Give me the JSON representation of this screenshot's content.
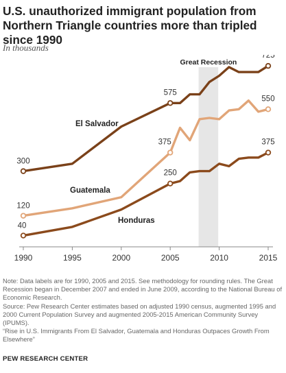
{
  "header": {
    "title": "U.S. unauthorized immigrant population from Northern Triangle countries more than tripled since 1990",
    "subtitle": "In thousands"
  },
  "colors": {
    "el_salvador": "#7a4119",
    "guatemala": "#e1a578",
    "honduras": "#8b4a1c",
    "recession_band": "#e6e6e6",
    "axis": "#888888"
  },
  "chart_data": {
    "type": "line",
    "x_ticks": [
      1990,
      1995,
      2000,
      2005,
      2010,
      2015
    ],
    "ylim": [
      0,
      800
    ],
    "annotation": {
      "label": "Great Recession",
      "start": 2007.9,
      "end": 2009.9
    },
    "series": [
      {
        "name": "El Salvador",
        "color": "#7a4119",
        "x": [
          1990,
          1995,
          2000,
          2005,
          2006,
          2007,
          2008,
          2009,
          2010,
          2011,
          2012,
          2013,
          2014,
          2015
        ],
        "values": [
          300,
          330,
          480,
          575,
          575,
          610,
          610,
          660,
          685,
          720,
          700,
          700,
          700,
          725
        ],
        "labels": [
          {
            "x": 1990,
            "text": "300"
          },
          {
            "x": 2005,
            "text": "575"
          },
          {
            "x": 2015,
            "text": "725"
          }
        ]
      },
      {
        "name": "Guatemala",
        "color": "#e1a578",
        "x": [
          1990,
          1995,
          2000,
          2005,
          2006,
          2007,
          2008,
          2009,
          2010,
          2011,
          2012,
          2013,
          2014,
          2015
        ],
        "values": [
          120,
          150,
          195,
          375,
          475,
          425,
          510,
          515,
          510,
          545,
          550,
          585,
          540,
          550
        ],
        "labels": [
          {
            "x": 1990,
            "text": "120"
          },
          {
            "x": 2005,
            "text": "375"
          },
          {
            "x": 2015,
            "text": "550"
          }
        ]
      },
      {
        "name": "Honduras",
        "color": "#8b4a1c",
        "x": [
          1990,
          1995,
          2000,
          2005,
          2006,
          2007,
          2008,
          2009,
          2010,
          2011,
          2012,
          2013,
          2014,
          2015
        ],
        "values": [
          40,
          75,
          145,
          250,
          260,
          295,
          300,
          300,
          330,
          320,
          350,
          355,
          355,
          375
        ],
        "labels": [
          {
            "x": 1990,
            "text": "40"
          },
          {
            "x": 2005,
            "text": "250"
          },
          {
            "x": 2015,
            "text": "375"
          }
        ]
      }
    ]
  },
  "notes": {
    "note": "Note: Data labels are for 1990, 2005 and 2015. See methodology for rounding rules. The Great Recession began in December 2007 and ended in June 2009, according to the National Bureau of Economic Research.",
    "source": "Source: Pew Research Center estimates based on adjusted 1990 census, augmented 1995 and 2000 Current Population Survey and augmented 2005-2015 American Community Survey (IPUMS).",
    "report": "“Rise in U.S. Immigrants From El Salvador, Guatemala and Honduras Outpaces Growth From Elsewhere”"
  },
  "brand": "PEW RESEARCH CENTER"
}
